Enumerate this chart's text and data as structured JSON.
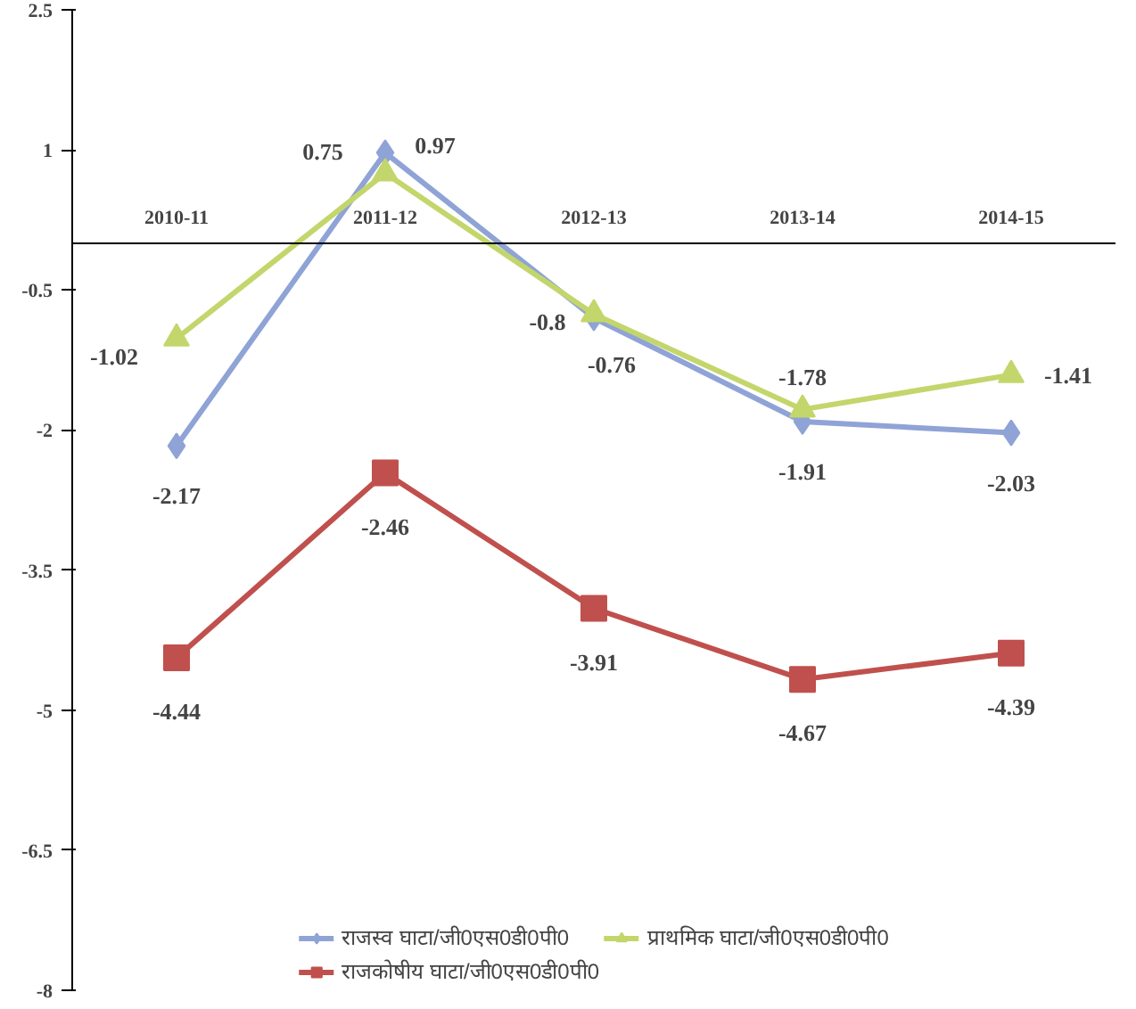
{
  "chart_data": {
    "type": "line",
    "categories": [
      "2010-11",
      "2011-12",
      "2012-13",
      "2013-14",
      "2014-15"
    ],
    "series": [
      {
        "name": "राजस्व घाटा/जी0एस0डी0पी0",
        "color": "#8fa3d6",
        "marker": "diamond",
        "values": [
          -2.17,
          0.97,
          -0.8,
          -1.91,
          -2.03
        ]
      },
      {
        "name": "राजकोषीय घाटा/जी0एस0डी0पी0",
        "color": "#c0504d",
        "marker": "square",
        "values": [
          -4.44,
          -2.46,
          -3.91,
          -4.67,
          -4.39
        ]
      },
      {
        "name": "प्राथमिक घाटा/जी0एस0डी0पी0",
        "color": "#c3d66c",
        "marker": "triangle",
        "values": [
          -1.02,
          0.75,
          -0.76,
          -1.78,
          -1.41
        ]
      }
    ],
    "ylim": [
      -8,
      2.5
    ],
    "yticks": [
      -8,
      -6.5,
      -5,
      -3.5,
      -2,
      -0.5,
      1,
      2.5
    ],
    "grid": false,
    "legend": "bottom",
    "data_labels": true
  }
}
